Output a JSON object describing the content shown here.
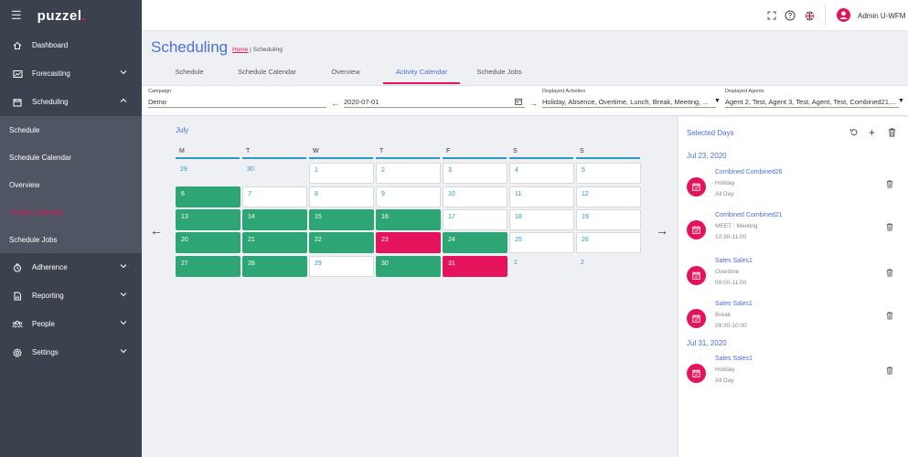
{
  "brand": {
    "logo_prefix": "p",
    "logo_mid": "uzzel",
    "logo_dot": "."
  },
  "sidebar": {
    "items": [
      {
        "label": "Dashboard"
      },
      {
        "label": "Forecasting"
      },
      {
        "label": "Scheduling"
      }
    ],
    "sub_items": [
      {
        "label": "Schedule"
      },
      {
        "label": "Schedule Calendar"
      },
      {
        "label": "Overview"
      },
      {
        "label": "Activity Calendar"
      },
      {
        "label": "Schedule Jobs"
      }
    ],
    "bottom_items": [
      {
        "label": "Adherence"
      },
      {
        "label": "Reporting"
      },
      {
        "label": "People"
      },
      {
        "label": "Settings"
      }
    ]
  },
  "topbar": {
    "user_name": "Admin U-WFM"
  },
  "header": {
    "title": "Scheduling",
    "breadcrumb_home": "Home",
    "breadcrumb_sep": "|",
    "breadcrumb_current": "Scheduling"
  },
  "tabs": [
    {
      "label": "Schedule"
    },
    {
      "label": "Schedule Calendar"
    },
    {
      "label": "Overview"
    },
    {
      "label": "Activity Calendar"
    },
    {
      "label": "Schedule Jobs"
    }
  ],
  "filters": {
    "campaign_label": "Campaign",
    "campaign_value": "Demo",
    "date_value": "2020-07-01",
    "activities_label": "Displayed Activities",
    "activities_value": "Holiday, Absence, Overtime, Lunch, Break, Meeting, ...",
    "agents_label": "Displayed Agents",
    "agents_value": "Agent 2, Test, Agent 3, Test, Agent, Test, Combined21,..."
  },
  "calendar": {
    "month": "July",
    "weekdays": [
      "M",
      "T",
      "W",
      "T",
      "F",
      "S",
      "S"
    ],
    "weeks": [
      [
        {
          "d": "29",
          "s": "other"
        },
        {
          "d": "30",
          "s": "other"
        },
        {
          "d": "1",
          "s": "white"
        },
        {
          "d": "2",
          "s": "white"
        },
        {
          "d": "3",
          "s": "white"
        },
        {
          "d": "4",
          "s": "white"
        },
        {
          "d": "5",
          "s": "white"
        }
      ],
      [
        {
          "d": "6",
          "s": "green"
        },
        {
          "d": "7",
          "s": "white"
        },
        {
          "d": "8",
          "s": "white"
        },
        {
          "d": "9",
          "s": "white"
        },
        {
          "d": "10",
          "s": "white"
        },
        {
          "d": "11",
          "s": "white"
        },
        {
          "d": "12",
          "s": "white"
        }
      ],
      [
        {
          "d": "13",
          "s": "green"
        },
        {
          "d": "14",
          "s": "green"
        },
        {
          "d": "15",
          "s": "green"
        },
        {
          "d": "16",
          "s": "green"
        },
        {
          "d": "17",
          "s": "white"
        },
        {
          "d": "18",
          "s": "white"
        },
        {
          "d": "19",
          "s": "white"
        }
      ],
      [
        {
          "d": "20",
          "s": "green"
        },
        {
          "d": "21",
          "s": "green"
        },
        {
          "d": "22",
          "s": "green"
        },
        {
          "d": "23",
          "s": "red"
        },
        {
          "d": "24",
          "s": "green"
        },
        {
          "d": "25",
          "s": "white"
        },
        {
          "d": "26",
          "s": "white"
        }
      ],
      [
        {
          "d": "27",
          "s": "green"
        },
        {
          "d": "28",
          "s": "green"
        },
        {
          "d": "29",
          "s": "white"
        },
        {
          "d": "30",
          "s": "green"
        },
        {
          "d": "31",
          "s": "red"
        },
        {
          "d": "1",
          "s": "other"
        },
        {
          "d": "2",
          "s": "other"
        }
      ]
    ]
  },
  "panel": {
    "title": "Selected Days",
    "groups": [
      {
        "date": "Jul 23, 2020",
        "entries": [
          {
            "name": "Combined Combined26",
            "activity": "Holiday",
            "time": "All Day"
          },
          {
            "name": "Combined Combined21",
            "activity": "MEET : Meeting",
            "time": "10:30-11:00"
          },
          {
            "name": "Sales Sales1",
            "activity": "Overtime",
            "time": "09:00-11:00"
          },
          {
            "name": "Sales Sales1",
            "activity": "Break",
            "time": "09:30-10:00"
          }
        ]
      },
      {
        "date": "Jul 31, 2020",
        "entries": [
          {
            "name": "Sales Sales1",
            "activity": "Holiday",
            "time": "All Day"
          }
        ]
      }
    ]
  },
  "colors": {
    "accent_blue": "#4a6fd8",
    "accent_pink": "#e4135b",
    "green": "#2ea575",
    "sidebar_bg": "#3b414d"
  },
  "icons": {
    "sidebar": [
      "home-icon",
      "forecast-icon",
      "calendar-icon",
      "clock-icon",
      "report-icon",
      "people-icon",
      "gear-icon"
    ],
    "topbar": [
      "fullscreen-icon",
      "help-icon",
      "uk-flag-icon",
      "user-avatar-icon"
    ],
    "panel": [
      "reset-icon",
      "add-icon",
      "trash-icon"
    ]
  }
}
